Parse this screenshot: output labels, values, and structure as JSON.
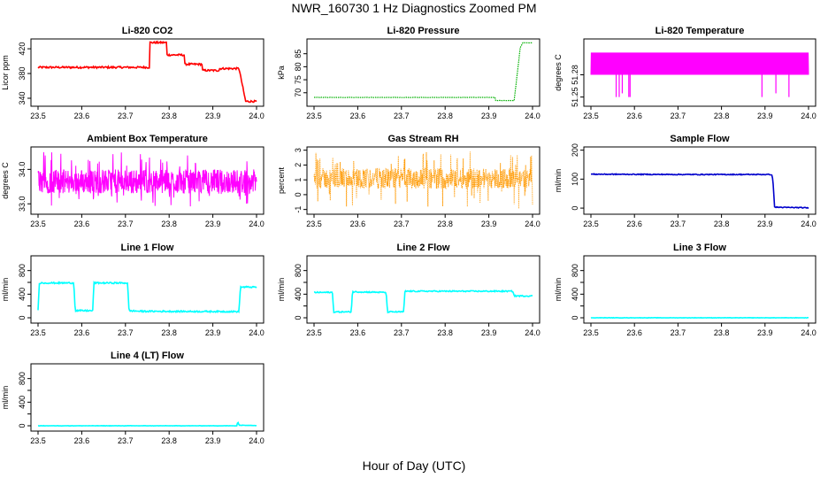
{
  "page": {
    "title": "NWR_160730  1 Hz Diagnostics Zoomed PM",
    "xlabel": "Hour of Day (UTC)"
  },
  "chart_data": [
    {
      "type": "line",
      "title": "Li-820 CO2",
      "ylabel": "Licor ppm",
      "color": "#ff0000",
      "style": "line",
      "noise": 1.5,
      "xlim": [
        23.5,
        24.0
      ],
      "ylim": [
        330,
        433
      ],
      "xticks": [
        23.5,
        23.6,
        23.7,
        23.8,
        23.9,
        24.0
      ],
      "xtick_labels": [
        "23.5",
        "23.6",
        "23.7",
        "23.8",
        "23.9",
        "24.0"
      ],
      "yticks": [
        340,
        380,
        420
      ],
      "ytick_labels": [
        "340",
        "380",
        "420"
      ],
      "points": [
        [
          23.5,
          390
        ],
        [
          23.755,
          390
        ],
        [
          23.755,
          430
        ],
        [
          23.795,
          430
        ],
        [
          23.795,
          410
        ],
        [
          23.835,
          410
        ],
        [
          23.835,
          395
        ],
        [
          23.875,
          395
        ],
        [
          23.875,
          385
        ],
        [
          23.915,
          385
        ],
        [
          23.915,
          388
        ],
        [
          23.96,
          388
        ],
        [
          23.975,
          335
        ],
        [
          24.0,
          335
        ]
      ]
    },
    {
      "type": "line",
      "title": "Li-820 Pressure",
      "ylabel": "kPa",
      "color": "#00b000",
      "style": "points",
      "noise": 0.05,
      "xlim": [
        23.5,
        24.0
      ],
      "ylim": [
        65.5,
        90
      ],
      "xticks": [
        23.5,
        23.6,
        23.7,
        23.8,
        23.9,
        24.0
      ],
      "xtick_labels": [
        "23.5",
        "23.6",
        "23.7",
        "23.8",
        "23.9",
        "24.0"
      ],
      "yticks": [
        70,
        75,
        80,
        85
      ],
      "ytick_labels": [
        "70",
        "75",
        "80",
        "85"
      ],
      "points": [
        [
          23.5,
          68.2
        ],
        [
          23.915,
          68.2
        ],
        [
          23.915,
          67.0
        ],
        [
          23.958,
          67.0
        ],
        [
          23.972,
          87.5
        ],
        [
          23.978,
          89.2
        ],
        [
          24.0,
          89.2
        ]
      ]
    },
    {
      "type": "line",
      "title": "Li-820 Temperature",
      "ylabel": "degrees C",
      "color": "#ff00ff",
      "style": "flicker",
      "xlim": [
        23.5,
        24.0
      ],
      "ylim": [
        51.24,
        51.326
      ],
      "xticks": [
        23.5,
        23.6,
        23.7,
        23.8,
        23.9,
        24.0
      ],
      "xtick_labels": [
        "23.5",
        "23.6",
        "23.7",
        "23.8",
        "23.9",
        "24.0"
      ],
      "yticks": [
        51.25,
        51.28
      ],
      "ytick_labels": [
        "51.25",
        "51.28"
      ],
      "levels": [
        51.28,
        51.31
      ],
      "dips": [
        [
          23.558,
          51.25
        ],
        [
          23.565,
          51.25
        ],
        [
          23.572,
          51.255
        ],
        [
          23.587,
          51.25
        ],
        [
          23.59,
          51.25
        ],
        [
          23.893,
          51.25
        ],
        [
          23.925,
          51.255
        ],
        [
          23.955,
          51.25
        ]
      ]
    },
    {
      "type": "line",
      "title": "Ambient Box Temperature",
      "ylabel": "degrees C",
      "color": "#ff00ff",
      "style": "noise",
      "xlim": [
        23.5,
        24.0
      ],
      "ylim": [
        32.75,
        34.6
      ],
      "xticks": [
        23.5,
        23.6,
        23.7,
        23.8,
        23.9,
        24.0
      ],
      "xtick_labels": [
        "23.5",
        "23.6",
        "23.7",
        "23.8",
        "23.9",
        "24.0"
      ],
      "yticks": [
        33.0,
        34.0
      ],
      "ytick_labels": [
        "33.0",
        "34.0"
      ],
      "center": 33.65,
      "amp": 0.35,
      "low": 32.9,
      "high": 34.5
    },
    {
      "type": "line",
      "title": "Gas Stream RH",
      "ylabel": "percent",
      "color": "#ff9900",
      "style": "noise-points",
      "xlim": [
        23.5,
        24.0
      ],
      "ylim": [
        -1.2,
        3.1
      ],
      "xticks": [
        23.5,
        23.6,
        23.7,
        23.8,
        23.9,
        24.0
      ],
      "xtick_labels": [
        "23.5",
        "23.6",
        "23.7",
        "23.8",
        "23.9",
        "24.0"
      ],
      "yticks": [
        -1,
        0,
        1,
        2,
        3
      ],
      "ytick_labels": [
        "-1",
        "0",
        "1",
        "2",
        "3"
      ],
      "center": 1.1,
      "amp": 0.7,
      "low": -1.0,
      "high": 2.9
    },
    {
      "type": "line",
      "title": "Sample Flow",
      "ylabel": "ml/min",
      "color": "#0000cc",
      "style": "line",
      "noise": 1.5,
      "xlim": [
        23.5,
        24.0
      ],
      "ylim": [
        -15,
        205
      ],
      "xticks": [
        23.5,
        23.6,
        23.7,
        23.8,
        23.9,
        24.0
      ],
      "xtick_labels": [
        "23.5",
        "23.6",
        "23.7",
        "23.8",
        "23.9",
        "24.0"
      ],
      "yticks": [
        0,
        100,
        200
      ],
      "ytick_labels": [
        "0",
        "100",
        "200"
      ],
      "points": [
        [
          23.5,
          117
        ],
        [
          23.7,
          116
        ],
        [
          23.915,
          116
        ],
        [
          23.918,
          100
        ],
        [
          23.922,
          3
        ],
        [
          24.0,
          1
        ]
      ]
    },
    {
      "type": "line",
      "title": "Line 1 Flow",
      "ylabel": "ml/min",
      "color": "#00ffff",
      "style": "line",
      "noise": 12,
      "xlim": [
        23.5,
        24.0
      ],
      "ylim": [
        -60,
        1020
      ],
      "xticks": [
        23.5,
        23.6,
        23.7,
        23.8,
        23.9,
        24.0
      ],
      "xtick_labels": [
        "23.5",
        "23.6",
        "23.7",
        "23.8",
        "23.9",
        "24.0"
      ],
      "yticks": [
        0,
        200,
        400,
        600,
        800
      ],
      "ytick_labels": [
        "0",
        "400",
        "800"
      ],
      "points": [
        [
          23.5,
          140
        ],
        [
          23.503,
          590
        ],
        [
          23.582,
          590
        ],
        [
          23.585,
          120
        ],
        [
          23.625,
          120
        ],
        [
          23.628,
          590
        ],
        [
          23.705,
          590
        ],
        [
          23.708,
          120
        ],
        [
          23.735,
          110
        ],
        [
          23.96,
          105
        ],
        [
          23.963,
          520
        ],
        [
          24.0,
          520
        ]
      ]
    },
    {
      "type": "line",
      "title": "Line 2 Flow",
      "ylabel": "ml/min",
      "color": "#00ffff",
      "style": "line",
      "noise": 10,
      "xlim": [
        23.5,
        24.0
      ],
      "ylim": [
        -60,
        1020
      ],
      "xticks": [
        23.5,
        23.6,
        23.7,
        23.8,
        23.9,
        24.0
      ],
      "xtick_labels": [
        "23.5",
        "23.6",
        "23.7",
        "23.8",
        "23.9",
        "24.0"
      ],
      "yticks": [
        0,
        200,
        400,
        600,
        800
      ],
      "ytick_labels": [
        "0",
        "400",
        "800"
      ],
      "points": [
        [
          23.5,
          430
        ],
        [
          23.542,
          430
        ],
        [
          23.545,
          100
        ],
        [
          23.585,
          100
        ],
        [
          23.588,
          440
        ],
        [
          23.665,
          430
        ],
        [
          23.668,
          100
        ],
        [
          23.705,
          100
        ],
        [
          23.708,
          450
        ],
        [
          23.955,
          450
        ],
        [
          23.958,
          370
        ],
        [
          24.0,
          370
        ]
      ]
    },
    {
      "type": "line",
      "title": "Line 3 Flow",
      "ylabel": "ml/min",
      "color": "#00ffff",
      "style": "line",
      "noise": 3,
      "xlim": [
        23.5,
        24.0
      ],
      "ylim": [
        -60,
        1020
      ],
      "xticks": [
        23.5,
        23.6,
        23.7,
        23.8,
        23.9,
        24.0
      ],
      "xtick_labels": [
        "23.5",
        "23.6",
        "23.7",
        "23.8",
        "23.9",
        "24.0"
      ],
      "yticks": [
        0,
        200,
        400,
        600,
        800
      ],
      "ytick_labels": [
        "0",
        "400",
        "800"
      ],
      "points": [
        [
          23.5,
          0
        ],
        [
          24.0,
          0
        ]
      ]
    },
    {
      "type": "line",
      "title": "Line 4 (LT) Flow",
      "ylabel": "ml/min",
      "color": "#00ffff",
      "style": "line",
      "noise": 3,
      "xlim": [
        23.5,
        24.0
      ],
      "ylim": [
        -60,
        1020
      ],
      "xticks": [
        23.5,
        23.6,
        23.7,
        23.8,
        23.9,
        24.0
      ],
      "xtick_labels": [
        "23.5",
        "23.6",
        "23.7",
        "23.8",
        "23.9",
        "24.0"
      ],
      "yticks": [
        0,
        200,
        400,
        600,
        800
      ],
      "ytick_labels": [
        "0",
        "400",
        "800"
      ],
      "points": [
        [
          23.5,
          0
        ],
        [
          23.955,
          0
        ],
        [
          23.957,
          70
        ],
        [
          23.96,
          10
        ],
        [
          24.0,
          5
        ]
      ]
    }
  ]
}
